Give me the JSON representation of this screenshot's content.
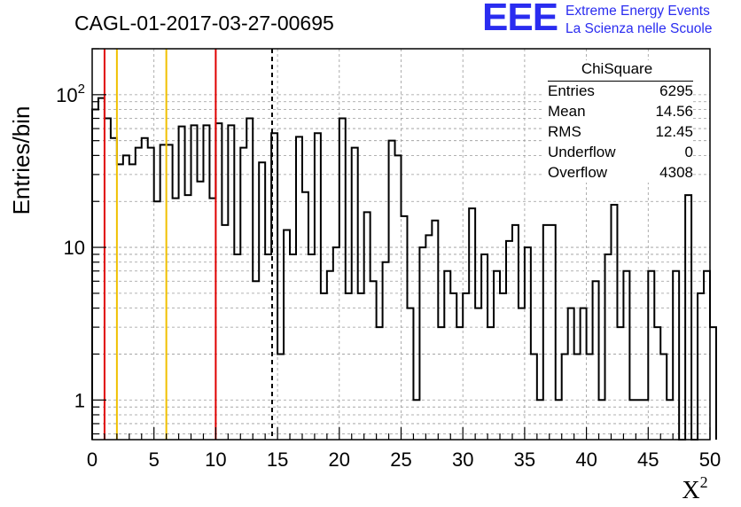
{
  "chart_data": {
    "type": "histogram",
    "title": "CAGL-01-2017-03-27-00695",
    "xlabel": "X²",
    "ylabel": "Entries/bin",
    "y_scale": "log",
    "xlim": [
      0,
      50
    ],
    "ylim": [
      0.55,
      200
    ],
    "x_ticks": [
      "0",
      "5",
      "10",
      "15",
      "20",
      "25",
      "30",
      "35",
      "40",
      "45",
      "50"
    ],
    "y_ticks": [
      {
        "value": 1,
        "label": "1"
      },
      {
        "value": 10,
        "label": "10"
      },
      {
        "value": 100,
        "label": "10²"
      }
    ],
    "grid": true,
    "bin_width": 0.5,
    "bin_start": 0,
    "values": [
      80,
      95,
      70,
      52,
      35,
      40,
      35,
      45,
      52,
      45,
      20,
      47,
      47,
      21,
      62,
      22,
      63,
      27,
      63,
      21,
      65,
      14,
      63,
      9,
      45,
      70,
      6,
      36,
      9,
      56,
      2,
      13,
      9,
      53,
      23,
      9,
      56,
      5,
      7,
      10,
      70,
      5,
      45,
      5,
      17,
      6,
      3,
      8,
      50,
      40,
      16,
      4,
      1,
      10,
      12,
      15,
      3,
      7,
      5,
      3,
      5,
      18,
      4,
      9,
      3,
      7,
      5,
      11,
      14,
      4,
      10,
      2,
      1,
      14,
      14,
      1,
      2,
      4,
      2,
      4,
      2,
      6,
      1,
      9,
      19,
      3,
      7,
      1,
      1,
      1,
      7,
      3,
      2,
      1,
      7,
      0,
      22,
      0,
      5,
      7,
      3
    ],
    "markers": [
      {
        "x": 1,
        "color": "#e00000",
        "style": "solid"
      },
      {
        "x": 2,
        "color": "#f0c000",
        "style": "solid"
      },
      {
        "x": 6,
        "color": "#f0c000",
        "style": "solid"
      },
      {
        "x": 10,
        "color": "#e00000",
        "style": "solid"
      },
      {
        "x": 14.56,
        "color": "#000000",
        "style": "dashed"
      }
    ],
    "stats": {
      "title": "ChiSquare",
      "rows": [
        {
          "label": "Entries",
          "value": "6295"
        },
        {
          "label": "Mean",
          "value": "14.56"
        },
        {
          "label": "RMS",
          "value": "12.45"
        },
        {
          "label": "Underflow",
          "value": "0"
        },
        {
          "label": "Overflow",
          "value": "4308"
        }
      ]
    }
  },
  "logo": {
    "mark": "EEE",
    "line1": "Extreme Energy Events",
    "line2": "La Scienza nelle Scuole"
  },
  "colors": {
    "logo_blue": "#2a2cf0",
    "red_marker": "#e00000",
    "yellow_marker": "#f0c000"
  }
}
